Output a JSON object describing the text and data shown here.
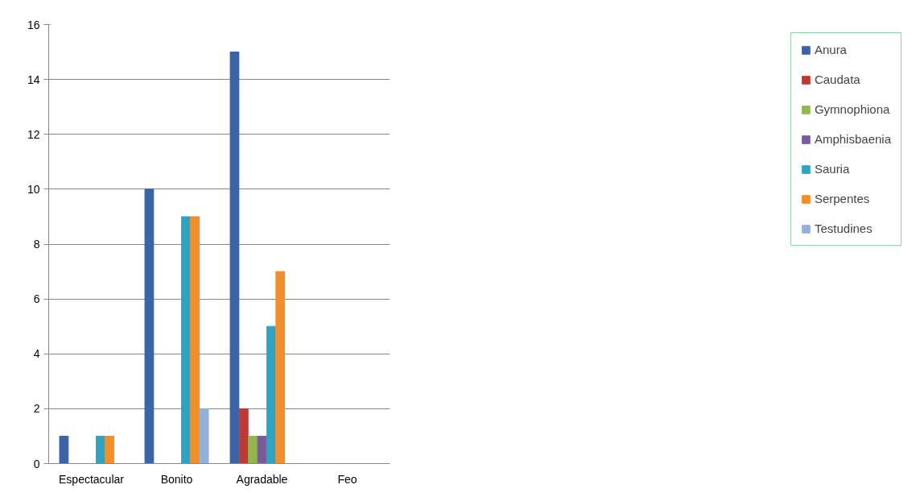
{
  "chart_data": {
    "type": "bar",
    "categories": [
      "Espectacular",
      "Bonito",
      "Agradable",
      "Feo"
    ],
    "series": [
      {
        "name": "Anura",
        "color": "#3b64a6",
        "values": [
          1,
          10,
          15,
          0
        ]
      },
      {
        "name": "Caudata",
        "color": "#be3a34",
        "values": [
          0,
          0,
          2,
          0
        ]
      },
      {
        "name": "Gymnophiona",
        "color": "#94b64f",
        "values": [
          0,
          0,
          1,
          0
        ]
      },
      {
        "name": "Amphisbaenia",
        "color": "#7b5a9b",
        "values": [
          0,
          0,
          1,
          0
        ]
      },
      {
        "name": "Sauria",
        "color": "#2fa4c2",
        "values": [
          1,
          9,
          5,
          0
        ]
      },
      {
        "name": "Serpentes",
        "color": "#f28f2a",
        "values": [
          1,
          9,
          7,
          0
        ]
      },
      {
        "name": "Testudines",
        "color": "#93b1d8",
        "values": [
          0,
          2,
          0,
          0
        ]
      }
    ],
    "ylim": [
      0,
      16
    ],
    "yticks": [
      0,
      2,
      4,
      6,
      8,
      10,
      12,
      14,
      16
    ],
    "grid": "y",
    "legend": "right"
  }
}
